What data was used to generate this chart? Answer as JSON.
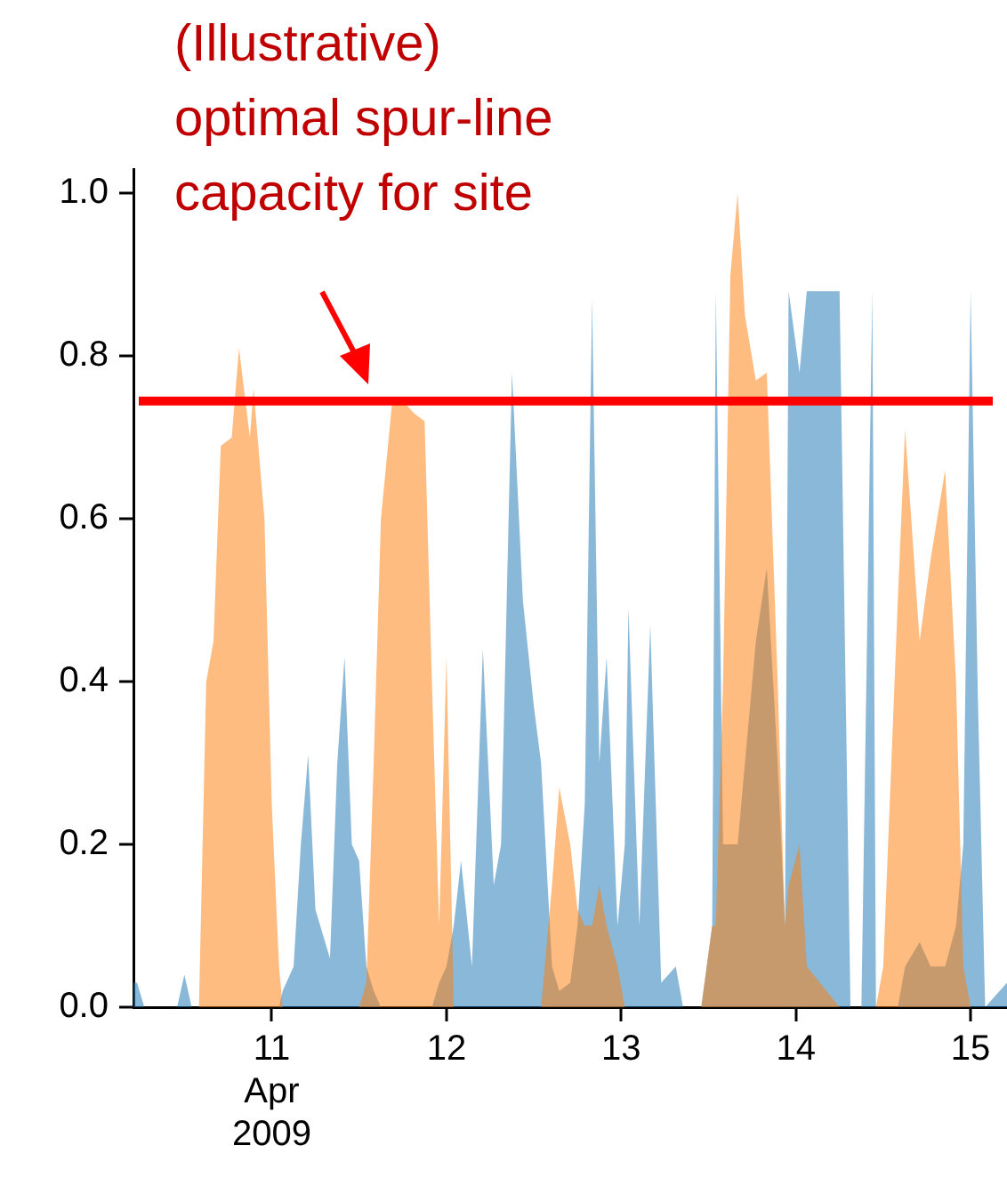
{
  "chart_data": {
    "type": "area",
    "x": [
      "2009-04-10T05:00",
      "2009-04-10T05:30",
      "2009-04-10T06:30",
      "2009-04-10T11:00",
      "2009-04-10T12:00",
      "2009-04-10T13:00",
      "2009-04-10T14:00",
      "2009-04-10T15:00",
      "2009-04-10T16:00",
      "2009-04-10T17:00",
      "2009-04-10T18:30",
      "2009-04-10T19:30",
      "2009-04-10T21:00",
      "2009-04-10T21:30",
      "2009-04-10T23:00",
      "2009-04-11T00:00",
      "2009-04-11T01:00",
      "2009-04-11T01:30",
      "2009-04-11T03:00",
      "2009-04-11T04:00",
      "2009-04-11T05:00",
      "2009-04-11T06:00",
      "2009-04-11T08:00",
      "2009-04-11T09:00",
      "2009-04-11T10:00",
      "2009-04-11T11:00",
      "2009-04-11T12:00",
      "2009-04-11T13:00",
      "2009-04-11T14:00",
      "2009-04-11T15:00",
      "2009-04-11T16:30",
      "2009-04-11T17:30",
      "2009-04-11T19:30",
      "2009-04-11T21:00",
      "2009-04-11T22:00",
      "2009-04-11T23:00",
      "2009-04-12T00:00",
      "2009-04-12T01:00",
      "2009-04-12T02:00",
      "2009-04-12T03:30",
      "2009-04-12T05:00",
      "2009-04-12T06:30",
      "2009-04-12T07:30",
      "2009-04-12T09:00",
      "2009-04-12T10:30",
      "2009-04-12T12:00",
      "2009-04-12T13:00",
      "2009-04-12T14:30",
      "2009-04-12T15:30",
      "2009-04-12T17:00",
      "2009-04-12T18:00",
      "2009-04-12T19:00",
      "2009-04-12T20:00",
      "2009-04-12T21:00",
      "2009-04-12T22:00",
      "2009-04-12T23:30",
      "2009-04-13T00:30",
      "2009-04-13T01:00",
      "2009-04-13T02:30",
      "2009-04-13T04:00",
      "2009-04-13T05:30",
      "2009-04-13T07:30",
      "2009-04-13T08:30",
      "2009-04-13T11:00",
      "2009-04-13T12:30",
      "2009-04-13T13:00",
      "2009-04-13T14:00",
      "2009-04-13T15:00",
      "2009-04-13T16:00",
      "2009-04-13T17:00",
      "2009-04-13T18:30",
      "2009-04-13T20:00",
      "2009-04-13T21:30",
      "2009-04-13T22:30",
      "2009-04-13T23:00",
      "2009-04-14T00:30",
      "2009-04-14T01:30",
      "2009-04-14T06:00",
      "2009-04-14T07:30",
      "2009-04-14T09:00",
      "2009-04-14T10:30",
      "2009-04-14T11:00",
      "2009-04-14T12:00",
      "2009-04-14T14:00",
      "2009-04-14T15:00",
      "2009-04-14T17:00",
      "2009-04-14T18:30",
      "2009-04-14T20:30",
      "2009-04-14T22:00",
      "2009-04-14T23:00",
      "2009-04-15T00:00",
      "2009-04-15T01:00",
      "2009-04-15T02:00",
      "2009-04-15T05:00"
    ],
    "series": [
      {
        "color": "#1f77b4",
        "values": [
          0.03,
          0.03,
          0,
          0,
          0.04,
          0,
          0,
          0,
          0,
          0,
          0,
          0,
          0,
          0,
          0,
          0,
          0,
          0.02,
          0.05,
          0.2,
          0.31,
          0.12,
          0.06,
          0.3,
          0.43,
          0.2,
          0.18,
          0.05,
          0.02,
          0,
          0,
          0,
          0,
          0,
          0,
          0.03,
          0.05,
          0.1,
          0.18,
          0.05,
          0.44,
          0.15,
          0.2,
          0.78,
          0.5,
          0.37,
          0.3,
          0.05,
          0.02,
          0.03,
          0.1,
          0.25,
          0.87,
          0.3,
          0.43,
          0.1,
          0.2,
          0.49,
          0.1,
          0.47,
          0.03,
          0.05,
          0,
          0,
          0.1,
          0.88,
          0.2,
          0.2,
          0.2,
          0.3,
          0.45,
          0.54,
          0.3,
          0.1,
          0.88,
          0.78,
          0.88,
          0.88,
          0,
          0,
          0.88,
          0,
          0,
          0,
          0.05,
          0.08,
          0.05,
          0.05,
          0.1,
          0.2,
          0.88,
          0.38,
          0,
          0.03
        ]
      },
      {
        "color": "#ff7f0e",
        "values": [
          0,
          0,
          0,
          0,
          0,
          0,
          0,
          0.4,
          0.45,
          0.69,
          0.7,
          0.81,
          0.7,
          0.76,
          0.6,
          0.25,
          0.05,
          0,
          0,
          0,
          0,
          0,
          0,
          0,
          0,
          0,
          0,
          0.03,
          0.3,
          0.6,
          0.74,
          0.75,
          0.73,
          0.72,
          0.4,
          0.1,
          0.43,
          0,
          0,
          0,
          0,
          0,
          0,
          0,
          0,
          0,
          0,
          0.15,
          0.27,
          0.2,
          0.12,
          0.1,
          0.1,
          0.15,
          0.1,
          0.05,
          0,
          0,
          0,
          0,
          0,
          0,
          0,
          0,
          0.1,
          0.1,
          0.4,
          0.9,
          1.0,
          0.85,
          0.77,
          0.78,
          0.4,
          0.1,
          0.15,
          0.2,
          0.05,
          0,
          0,
          0,
          0,
          0,
          0.05,
          0.5,
          0.71,
          0.45,
          0.55,
          0.66,
          0.4,
          0.05,
          0,
          0,
          0,
          0
        ]
      }
    ],
    "xlim": [
      "2009-04-10T05:00",
      "2009-04-15T05:00"
    ],
    "xticks": [
      {
        "value": "2009-04-11",
        "label": "11\nApr\n2009"
      },
      {
        "value": "2009-04-12",
        "label": "12"
      },
      {
        "value": "2009-04-13",
        "label": "13"
      },
      {
        "value": "2009-04-14",
        "label": "14"
      },
      {
        "value": "2009-04-15",
        "label": "15"
      }
    ],
    "ylim": [
      0,
      1.03
    ],
    "yticks": [
      {
        "value": 0,
        "label": "0.0"
      },
      {
        "value": 0.2,
        "label": "0.2"
      },
      {
        "value": 0.4,
        "label": "0.4"
      },
      {
        "value": 0.6,
        "label": "0.6"
      },
      {
        "value": 0.8,
        "label": "0.8"
      },
      {
        "value": 1,
        "label": "1.0"
      }
    ],
    "ref_lines": [
      {
        "axis": "y",
        "value": 0.745,
        "color": "#ff0000"
      }
    ],
    "annotations": [
      "(Illustrative)\noptimal spur-line\ncapacity for site"
    ],
    "grid": false,
    "legend": false
  }
}
